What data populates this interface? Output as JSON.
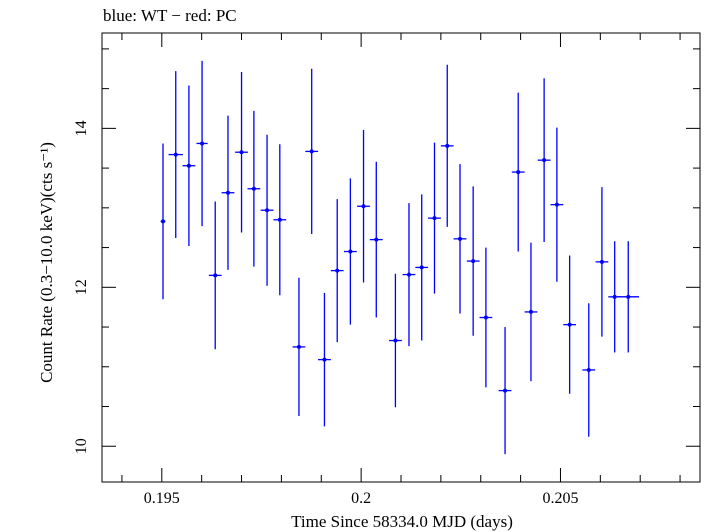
{
  "chart_data": {
    "type": "scatter",
    "title": "blue: WT − red: PC",
    "xlabel": "Time Since 58334.0 MJD (days)",
    "ylabel": "Count Rate (0.3−10.0 keV)(cts s⁻¹)",
    "xlim": [
      0.1935,
      0.2085
    ],
    "ylim": [
      9.55,
      15.2
    ],
    "xticks": [
      0.195,
      0.2,
      0.205
    ],
    "xtick_labels": [
      "0.195",
      "0.2",
      "0.205"
    ],
    "yticks": [
      10,
      12,
      14
    ],
    "ytick_labels": [
      "10",
      "12",
      "14"
    ],
    "grid": false,
    "series": [
      {
        "color": "#0000ff",
        "x": [
          0.19503,
          0.19535,
          0.19568,
          0.19601,
          0.19634,
          0.19666,
          0.197,
          0.19731,
          0.19764,
          0.19796,
          0.19844,
          0.19876,
          0.19908,
          0.1994,
          0.19973,
          0.20006,
          0.20038,
          0.20086,
          0.2012,
          0.20152,
          0.20184,
          0.20216,
          0.20248,
          0.20281,
          0.20313,
          0.20361,
          0.20394,
          0.20426,
          0.20459,
          0.20491,
          0.20523,
          0.20571,
          0.20604,
          0.20636,
          0.2067
        ],
        "xerr": [
          6e-05,
          0.00018,
          0.00016,
          0.00014,
          0.00016,
          0.00016,
          0.00016,
          0.00016,
          0.00016,
          0.00016,
          0.00016,
          0.00016,
          0.00016,
          0.00016,
          0.00016,
          0.00016,
          0.00016,
          0.00016,
          0.00016,
          0.00016,
          0.00016,
          0.00016,
          0.00016,
          0.00016,
          0.00016,
          0.00016,
          0.00016,
          0.00016,
          0.00016,
          0.00016,
          0.00016,
          0.00016,
          0.00016,
          0.00016,
          0.00027
        ],
        "y": [
          12.83,
          13.67,
          13.53,
          13.81,
          12.15,
          13.19,
          13.7,
          13.24,
          12.97,
          12.85,
          11.25,
          13.71,
          11.09,
          12.21,
          12.45,
          13.02,
          12.6,
          11.33,
          12.16,
          12.25,
          12.87,
          13.78,
          12.61,
          12.33,
          11.62,
          10.7,
          13.45,
          11.69,
          13.6,
          13.04,
          11.53,
          10.96,
          12.32,
          11.88,
          11.88
        ],
        "yerr": [
          0.98,
          1.05,
          1.01,
          1.04,
          0.93,
          0.97,
          1.01,
          0.98,
          0.95,
          0.95,
          0.87,
          1.04,
          0.84,
          0.9,
          0.92,
          0.96,
          0.98,
          0.84,
          0.9,
          0.92,
          0.95,
          1.02,
          0.94,
          0.94,
          0.88,
          0.8,
          1.0,
          0.87,
          1.03,
          0.97,
          0.87,
          0.84,
          0.94,
          0.7,
          0.7
        ]
      }
    ]
  }
}
